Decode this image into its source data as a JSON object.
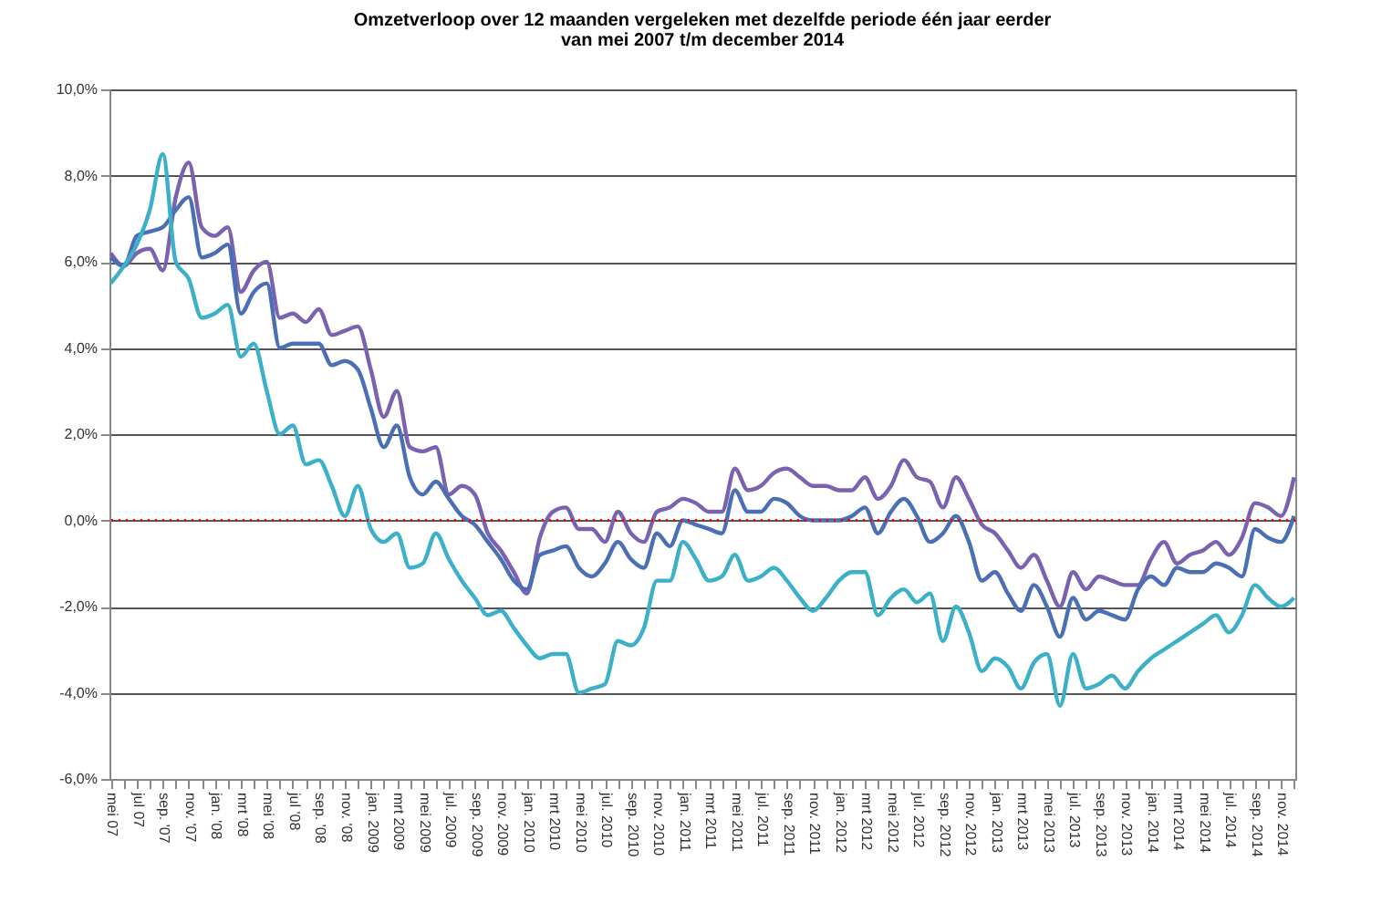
{
  "chart_data": {
    "type": "line",
    "title": "Omzetverloop over 12 maanden vergeleken met dezelfde periode één jaar eerder",
    "subtitle": "van mei 2007 t/m december 2014",
    "categories": [
      "mei 07",
      null,
      "jul 07",
      null,
      "sep. '07",
      null,
      "nov. '07",
      null,
      "jan. '08",
      null,
      "mrt '08",
      null,
      "mei '08",
      null,
      "jul '08",
      null,
      "sep. '08",
      null,
      "nov. '08",
      null,
      "jan. 2009",
      null,
      "mrt 2009",
      null,
      "mei 2009",
      null,
      "jul. 2009",
      null,
      "sep. 2009",
      null,
      "nov. 2009",
      null,
      "jan. 2010",
      null,
      "mrt 2010",
      null,
      "mei 2010",
      null,
      "jul. 2010",
      null,
      "sep. 2010",
      null,
      "nov. 2010",
      null,
      "jan. 2011",
      null,
      "mrt 2011",
      null,
      "mei 2011",
      null,
      "jul. 2011",
      null,
      "sep. 2011",
      null,
      "nov. 2011",
      null,
      "jan. 2012",
      null,
      "mrt 2012",
      null,
      "mei 2012",
      null,
      "jul. 2012",
      null,
      "sep. 2012",
      null,
      "nov. 2012",
      null,
      "jan. 2013",
      null,
      "mrt 2013",
      null,
      "mei 2013",
      null,
      "jul. 2013",
      null,
      "sep. 2013",
      null,
      "nov. 2013",
      null,
      "jan. 2014",
      null,
      "mrt 2014",
      null,
      "mei 2014",
      null,
      "jul. 2014",
      null,
      "sep. 2014",
      null,
      "nov. 2014",
      null
    ],
    "series": [
      {
        "color": "#7b62b0",
        "values": [
          6.2,
          5.9,
          6.2,
          6.3,
          5.8,
          7.5,
          8.3,
          6.8,
          6.6,
          6.8,
          5.3,
          5.8,
          6.0,
          4.7,
          4.8,
          4.6,
          4.9,
          4.3,
          4.4,
          4.5,
          3.5,
          2.4,
          3.0,
          1.7,
          1.6,
          1.7,
          0.6,
          0.8,
          0.6,
          -0.3,
          -0.7,
          -1.2,
          -1.7,
          -0.4,
          0.2,
          0.3,
          -0.2,
          -0.2,
          -0.5,
          0.2,
          -0.3,
          -0.5,
          0.2,
          0.3,
          0.5,
          0.4,
          0.2,
          0.2,
          1.2,
          0.7,
          0.8,
          1.1,
          1.2,
          1.0,
          0.8,
          0.8,
          0.7,
          0.7,
          1.0,
          0.5,
          0.8,
          1.4,
          1.0,
          0.9,
          0.3,
          1.0,
          0.5,
          -0.1,
          -0.3,
          -0.7,
          -1.1,
          -0.8,
          -1.4,
          -2.0,
          -1.2,
          -1.6,
          -1.3,
          -1.4,
          -1.5,
          -1.5,
          -0.9,
          -0.5,
          -1.0,
          -0.8,
          -0.7,
          -0.5,
          -0.8,
          -0.4,
          0.4,
          0.3,
          0.1,
          1.0
        ]
      },
      {
        "color": "#4a6fb5",
        "values": [
          6.1,
          5.9,
          6.6,
          6.7,
          6.8,
          7.2,
          7.5,
          6.1,
          6.2,
          6.4,
          4.8,
          5.3,
          5.5,
          4.0,
          4.1,
          4.1,
          4.1,
          3.6,
          3.7,
          3.5,
          2.6,
          1.7,
          2.2,
          1.0,
          0.6,
          0.9,
          0.5,
          0.1,
          -0.1,
          -0.5,
          -0.9,
          -1.4,
          -1.6,
          -0.8,
          -0.7,
          -0.6,
          -1.1,
          -1.3,
          -1.0,
          -0.5,
          -0.9,
          -1.1,
          -0.3,
          -0.6,
          0.0,
          -0.1,
          -0.2,
          -0.3,
          0.7,
          0.2,
          0.2,
          0.5,
          0.4,
          0.1,
          0.0,
          0.0,
          0.0,
          0.1,
          0.3,
          -0.3,
          0.2,
          0.5,
          0.1,
          -0.5,
          -0.3,
          0.1,
          -0.5,
          -1.4,
          -1.2,
          -1.7,
          -2.1,
          -1.5,
          -2.0,
          -2.7,
          -1.8,
          -2.3,
          -2.1,
          -2.2,
          -2.3,
          -1.6,
          -1.3,
          -1.5,
          -1.1,
          -1.2,
          -1.2,
          -1.0,
          -1.1,
          -1.3,
          -0.2,
          -0.4,
          -0.5,
          0.1
        ]
      },
      {
        "color": "#3bb0c8",
        "values": [
          5.5,
          5.9,
          6.4,
          7.2,
          8.5,
          6.0,
          5.6,
          4.7,
          4.8,
          5.0,
          3.8,
          4.1,
          3.0,
          2.0,
          2.2,
          1.3,
          1.4,
          0.8,
          0.1,
          0.8,
          -0.2,
          -0.5,
          -0.3,
          -1.1,
          -1.0,
          -0.3,
          -0.9,
          -1.4,
          -1.8,
          -2.2,
          -2.1,
          -2.5,
          -2.9,
          -3.2,
          -3.1,
          -3.1,
          -4.0,
          -3.9,
          -3.8,
          -2.8,
          -2.9,
          -2.5,
          -1.4,
          -1.4,
          -0.5,
          -0.9,
          -1.4,
          -1.3,
          -0.8,
          -1.4,
          -1.3,
          -1.1,
          -1.4,
          -1.8,
          -2.1,
          -1.8,
          -1.4,
          -1.2,
          -1.2,
          -2.2,
          -1.8,
          -1.6,
          -1.9,
          -1.7,
          -2.8,
          -2.0,
          -2.6,
          -3.5,
          -3.2,
          -3.4,
          -3.9,
          -3.3,
          -3.1,
          -4.3,
          -3.1,
          -3.9,
          -3.8,
          -3.6,
          -3.9,
          -3.5,
          -3.2,
          -3.0,
          -2.8,
          -2.6,
          -2.4,
          -2.2,
          -2.6,
          -2.2,
          -1.5,
          -1.8,
          -2.0,
          -1.8
        ]
      }
    ],
    "ylim": [
      -6,
      10
    ],
    "yticks": [
      {
        "value": -6,
        "label": "-6,0%"
      },
      {
        "value": -4,
        "label": "-4,0%"
      },
      {
        "value": -2,
        "label": "-2,0%"
      },
      {
        "value": 0,
        "label": "0,0%"
      },
      {
        "value": 2,
        "label": "2,0%"
      },
      {
        "value": 4,
        "label": "4,0%"
      },
      {
        "value": 6,
        "label": "6,0%"
      },
      {
        "value": 8,
        "label": "8,0%"
      },
      {
        "value": 10,
        "label": "10,0%"
      }
    ],
    "grid": "y",
    "ref_lines": [
      {
        "axis": "y",
        "value": 0,
        "color": "#ff0000",
        "line_style": "dotted"
      }
    ]
  }
}
